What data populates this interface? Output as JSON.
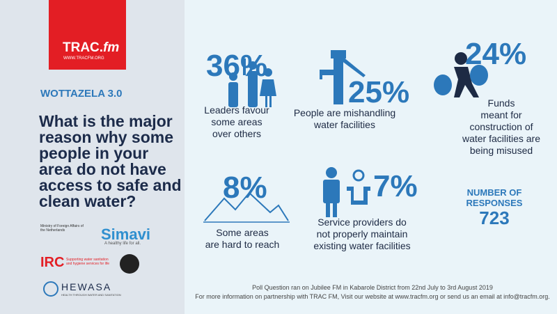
{
  "header": {
    "logo": "TRAC.",
    "logo_suffix": "fm",
    "logo_url": "WWW.TRACFM.ORG",
    "program": "WOTTAZELA 3.0",
    "question": [
      "What is the major",
      "reason why some",
      "people in your",
      "area do not have",
      "access to safe and",
      "clean water?"
    ]
  },
  "results": [
    {
      "percent": "36%",
      "label": [
        "Leaders favour",
        "some areas",
        "over others"
      ]
    },
    {
      "percent": "25%",
      "label": [
        "People are mishandling",
        "water facilities"
      ]
    },
    {
      "percent": "24%",
      "label": [
        "Funds",
        "meant for",
        "construction of",
        "water facilities are",
        "being misused"
      ]
    },
    {
      "percent": "8%",
      "label": [
        "Some areas",
        "are hard to reach"
      ]
    },
    {
      "percent": "7%",
      "label": [
        "Service providers do",
        "not properly maintain",
        "existing water facilities"
      ]
    }
  ],
  "responses": {
    "label": [
      "NUMBER OF",
      "RESPONSES"
    ],
    "count": "723"
  },
  "partners": {
    "ministry": "Ministry of Foreign Affairs of the Netherlands",
    "simavi": "Simavi",
    "simavi_tagline": "A healthy life for all.",
    "irc": "IRC",
    "irc_tagline": "Supporting water sanitation and hygiene services for life",
    "hewasa": "HEWASA",
    "hewasa_tagline": "HEALTH THROUGH WATER AND SANITATION"
  },
  "footer": [
    "Poll Question ran on Jubilee FM in Kabarole District from 22nd July to 3rd August 2019",
    "For more information on partnership with TRAC FM,  Visit our website at www.tracfm.org or send us an email at info@tracfm.org."
  ]
}
